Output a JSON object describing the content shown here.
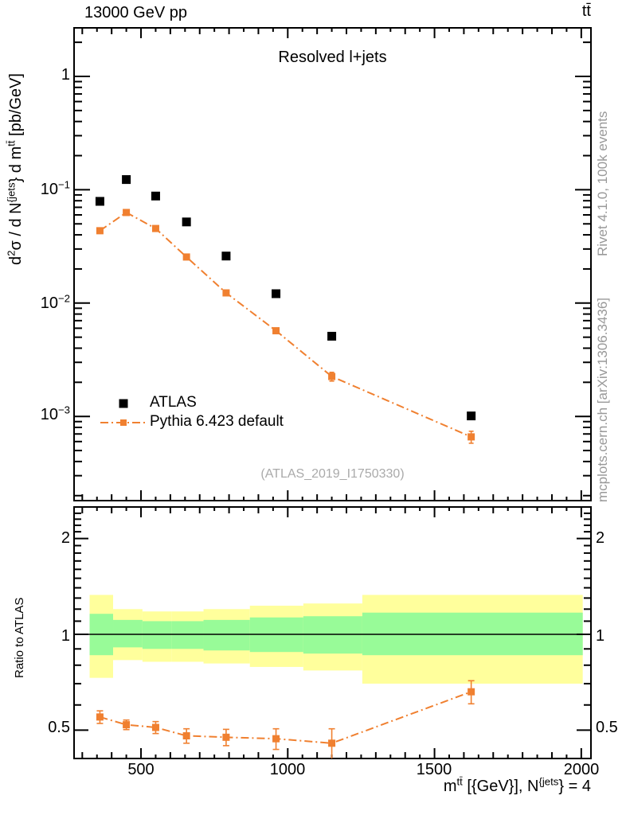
{
  "header": {
    "beam": "13000 GeV pp",
    "process": "tt̄"
  },
  "panel_title": "Resolved l+jets",
  "watermark": "(ATLAS_2019_I1750330)",
  "side_notes": {
    "generator": "Rivet 4.1.0,  100k events",
    "site": "mcplots.cern.ch [arXiv:1306.3436]"
  },
  "legend": {
    "items": [
      {
        "label": "ATLAS",
        "marker": "black-square"
      },
      {
        "label": "Pythia 6.423 default",
        "marker": "orange-square-dashdot"
      }
    ]
  },
  "axes": {
    "ylabel": {
      "p0": "d",
      "s0": "2",
      "p1": "σ / d N",
      "s1": "{jets",
      "p2": "} d m",
      "s2": "tt̄",
      "p3": " [pb/GeV]"
    },
    "xlabel": {
      "p0": "m",
      "s0": "tt̄",
      "p1": " [{GeV}], N",
      "s1": "{jets",
      "p2": "} = 4"
    },
    "ratio_ylabel": "Ratio to ATLAS",
    "x_tick_labels": [
      "500",
      "1000",
      "1500",
      "2000"
    ],
    "y_tick_labels": [
      {
        "b": "1",
        "e": ""
      },
      {
        "b": "10",
        "e": "−1"
      },
      {
        "b": "10",
        "e": "−2"
      },
      {
        "b": "10",
        "e": "−3"
      }
    ],
    "ratio_tick_labels": [
      "2",
      "1",
      "0.5"
    ]
  },
  "colors": {
    "mc": "#f08030",
    "data": "#000000",
    "band_green": "#98fb98",
    "band_yellow": "#ffff9c",
    "gray_text": "#999999",
    "watermark": "#aaaaaa"
  },
  "chart_data": [
    {
      "type": "scatter",
      "title": "Resolved l+jets",
      "xlabel": "m^tt [{GeV}], N^{jets} = 4",
      "ylabel": "d2σ / dN^{jets} dm^tt [pb/GeV]",
      "x_range": [
        272,
        2033
      ],
      "y_range_log": [
        0.00018,
        2.68
      ],
      "x_major_ticks": [
        500,
        1000,
        1500,
        2000
      ],
      "y_major_ticks": [
        1,
        0.1,
        0.01,
        0.001
      ],
      "x": [
        360,
        450,
        550,
        655,
        790,
        960,
        1150,
        1625
      ],
      "series": [
        {
          "name": "ATLAS",
          "values": [
            0.079,
            0.123,
            0.088,
            0.052,
            0.026,
            0.0121,
            0.0051,
            0.00101
          ]
        },
        {
          "name": "Pythia 6.423 default",
          "values": [
            0.0435,
            0.063,
            0.0455,
            0.0255,
            0.0123,
            0.0057,
            0.00225,
            0.00066
          ],
          "errors": [
            0.0012,
            0.0012,
            0.0009,
            0.0006,
            0.0004,
            0.00025,
            0.0002,
            8e-05
          ]
        }
      ]
    },
    {
      "type": "ratio",
      "ylabel": "Ratio to ATLAS",
      "x_range": [
        272,
        2033
      ],
      "y_range_log": [
        0.407,
        2.51
      ],
      "reference": 1,
      "y_major_ticks": [
        0.5,
        1,
        2
      ],
      "x": [
        360,
        450,
        550,
        655,
        790,
        960,
        1150,
        1625
      ],
      "values": [
        0.55,
        0.52,
        0.51,
        0.48,
        0.475,
        0.47,
        0.455,
        0.66
      ],
      "errors": [
        0.025,
        0.018,
        0.022,
        0.025,
        0.028,
        0.035,
        0.05,
        0.055
      ],
      "bands": {
        "bin_edges": [
          325,
          405,
          505,
          605,
          713,
          871,
          1053,
          1254,
          2005
        ],
        "yellow_low": [
          0.73,
          0.83,
          0.82,
          0.82,
          0.81,
          0.79,
          0.77,
          0.7
        ],
        "yellow_high": [
          1.33,
          1.2,
          1.18,
          1.18,
          1.2,
          1.23,
          1.25,
          1.33
        ],
        "green_low": [
          0.86,
          0.91,
          0.9,
          0.9,
          0.89,
          0.88,
          0.87,
          0.86
        ],
        "green_high": [
          1.16,
          1.11,
          1.1,
          1.1,
          1.11,
          1.13,
          1.14,
          1.17
        ]
      }
    }
  ]
}
